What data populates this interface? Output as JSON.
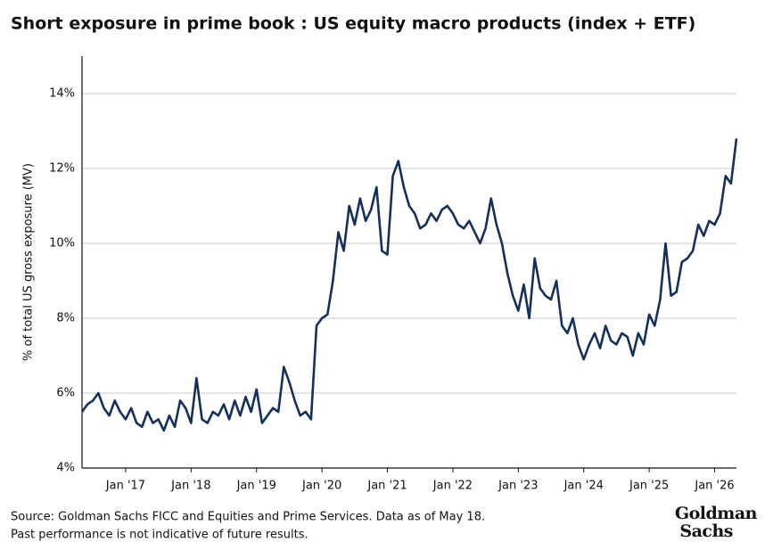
{
  "chart_data": {
    "type": "line",
    "title": "Short exposure in prime book : US equity macro products (index + ETF)",
    "y_label": "% of total US gross exposure (MV)",
    "notes": [
      "Source: Goldman Sachs FICC and Equities and Prime Services. Data as of May 18.",
      "Past performance is not indicative of future results."
    ],
    "logo": [
      "Goldman",
      "Sachs"
    ],
    "x": [
      "2016-05",
      "2016-06",
      "2016-07",
      "2016-08",
      "2016-09",
      "2016-10",
      "2016-11",
      "2016-12",
      "2017-01",
      "2017-02",
      "2017-03",
      "2017-04",
      "2017-05",
      "2017-06",
      "2017-07",
      "2017-08",
      "2017-09",
      "2017-10",
      "2017-11",
      "2017-12",
      "2018-01",
      "2018-02",
      "2018-03",
      "2018-04",
      "2018-05",
      "2018-06",
      "2018-07",
      "2018-08",
      "2018-09",
      "2018-10",
      "2018-11",
      "2018-12",
      "2019-01",
      "2019-02",
      "2019-03",
      "2019-04",
      "2019-05",
      "2019-06",
      "2019-07",
      "2019-08",
      "2019-09",
      "2019-10",
      "2019-11",
      "2019-12",
      "2020-01",
      "2020-02",
      "2020-03",
      "2020-04",
      "2020-05",
      "2020-06",
      "2020-07",
      "2020-08",
      "2020-09",
      "2020-10",
      "2020-11",
      "2020-12",
      "2021-01",
      "2021-02",
      "2021-03",
      "2021-04",
      "2021-05",
      "2021-06",
      "2021-07",
      "2021-08",
      "2021-09",
      "2021-10",
      "2021-11",
      "2021-12",
      "2022-01",
      "2022-02",
      "2022-03",
      "2022-04",
      "2022-05",
      "2022-06",
      "2022-07",
      "2022-08",
      "2022-09",
      "2022-10",
      "2022-11",
      "2022-12",
      "2023-01",
      "2023-02",
      "2023-03",
      "2023-04",
      "2023-05",
      "2023-06",
      "2023-07",
      "2023-08",
      "2023-09",
      "2023-10",
      "2023-11",
      "2023-12",
      "2024-01",
      "2024-02",
      "2024-03",
      "2024-04",
      "2024-05",
      "2024-06",
      "2024-07",
      "2024-08",
      "2024-09",
      "2024-10",
      "2024-11",
      "2024-12",
      "2025-01",
      "2025-02",
      "2025-03",
      "2025-04",
      "2025-05",
      "2025-06",
      "2025-07",
      "2025-08",
      "2025-09",
      "2025-10",
      "2025-11",
      "2025-12",
      "2026-01",
      "2026-02",
      "2026-03",
      "2026-04",
      "2026-05"
    ],
    "series": [
      {
        "name": "Short exposure",
        "color": "#14305c",
        "values": [
          5.5,
          5.7,
          5.8,
          6.0,
          5.6,
          5.4,
          5.8,
          5.5,
          5.3,
          5.6,
          5.2,
          5.1,
          5.5,
          5.2,
          5.3,
          5.0,
          5.4,
          5.1,
          5.8,
          5.6,
          5.2,
          6.4,
          5.3,
          5.2,
          5.5,
          5.4,
          5.7,
          5.3,
          5.8,
          5.4,
          5.9,
          5.5,
          6.1,
          5.2,
          5.4,
          5.6,
          5.5,
          6.7,
          6.3,
          5.8,
          5.4,
          5.5,
          5.3,
          7.8,
          8.0,
          8.1,
          9.0,
          10.3,
          9.8,
          11.0,
          10.5,
          11.2,
          10.6,
          10.9,
          11.5,
          9.8,
          9.7,
          11.8,
          12.2,
          11.5,
          11.0,
          10.8,
          10.4,
          10.5,
          10.8,
          10.6,
          10.9,
          11.0,
          10.8,
          10.5,
          10.4,
          10.6,
          10.3,
          10.0,
          10.4,
          11.2,
          10.5,
          10.0,
          9.2,
          8.6,
          8.2,
          8.9,
          8.0,
          9.6,
          8.8,
          8.6,
          8.5,
          9.0,
          7.8,
          7.6,
          8.0,
          7.3,
          6.9,
          7.3,
          7.6,
          7.2,
          7.8,
          7.4,
          7.3,
          7.6,
          7.5,
          7.0,
          7.6,
          7.3,
          8.1,
          7.8,
          8.5,
          10.0,
          8.6,
          8.7,
          9.5,
          9.6,
          9.8,
          10.5,
          10.2,
          10.6,
          10.5,
          10.8,
          11.8,
          11.6,
          12.8
        ]
      }
    ],
    "xlim": [
      "2016-05",
      "2026-05"
    ],
    "xticks": [
      {
        "value": "2017-01",
        "label": "Jan '17"
      },
      {
        "value": "2018-01",
        "label": "Jan '18"
      },
      {
        "value": "2019-01",
        "label": "Jan '19"
      },
      {
        "value": "2020-01",
        "label": "Jan '20"
      },
      {
        "value": "2021-01",
        "label": "Jan '21"
      },
      {
        "value": "2022-01",
        "label": "Jan '22"
      },
      {
        "value": "2023-01",
        "label": "Jan '23"
      },
      {
        "value": "2024-01",
        "label": "Jan '24"
      },
      {
        "value": "2025-01",
        "label": "Jan '25"
      },
      {
        "value": "2026-01",
        "label": "Jan '26"
      }
    ],
    "ylim": [
      4,
      15
    ],
    "yticks": [
      {
        "value": 4,
        "label": "4%"
      },
      {
        "value": 6,
        "label": "6%"
      },
      {
        "value": 8,
        "label": "8%"
      },
      {
        "value": 10,
        "label": "10%"
      },
      {
        "value": 12,
        "label": "12%"
      },
      {
        "value": 14,
        "label": "14%"
      }
    ],
    "grid": true
  }
}
